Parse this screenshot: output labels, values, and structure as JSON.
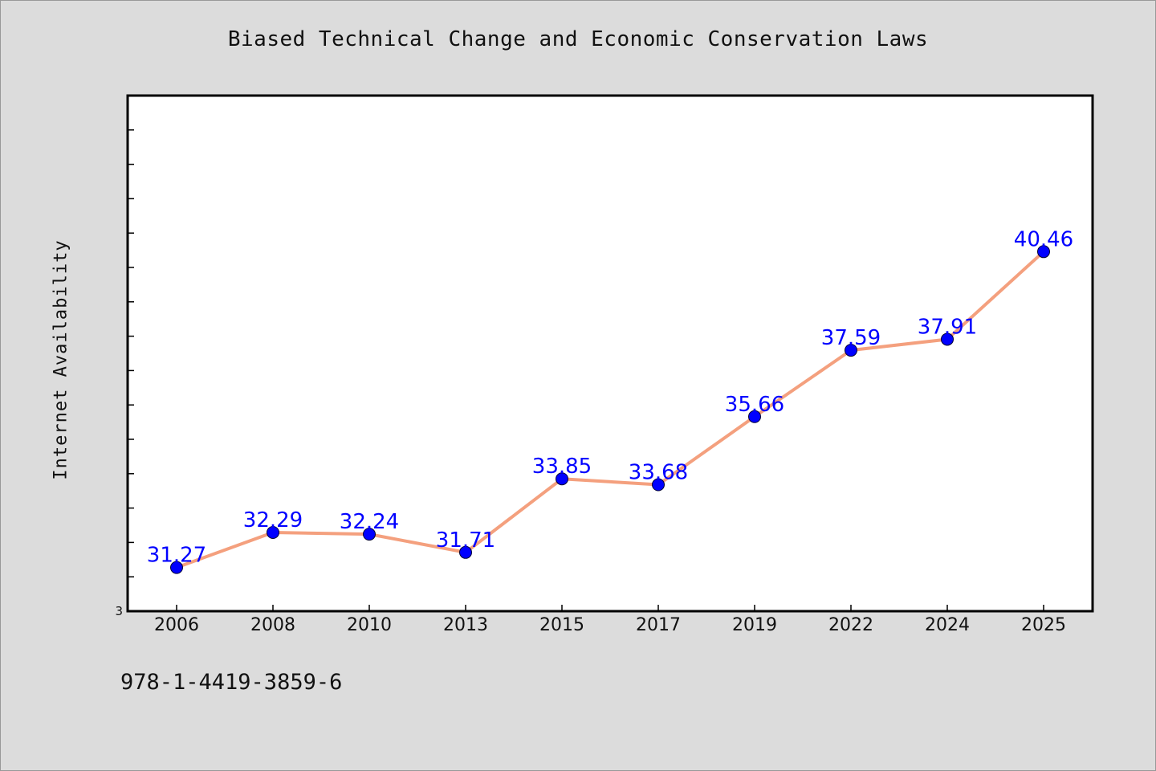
{
  "chart_data": {
    "type": "line",
    "title": "Biased Technical Change and Economic Conservation Laws",
    "xlabel": "",
    "ylabel": "Internet Availability",
    "categories": [
      "2006",
      "2008",
      "2010",
      "2013",
      "2015",
      "2017",
      "2019",
      "2022",
      "2024",
      "2025"
    ],
    "series": [
      {
        "values": [
          31.27,
          32.29,
          32.24,
          31.71,
          33.85,
          33.68,
          35.66,
          37.59,
          37.91,
          40.46
        ]
      }
    ],
    "data_labels": [
      "31.27",
      "32.29",
      "32.24",
      "31.71",
      "33.85",
      "33.68",
      "35.66",
      "37.59",
      "37.91",
      "40.46"
    ],
    "y_min_label": "3",
    "ylim": [
      30.0,
      45.0
    ],
    "y_minor_tick_step": 1,
    "grid": false,
    "legend": "none",
    "colors": {
      "line": "#f4a07e",
      "marker": "#0000ff",
      "data_label": "#0000ff",
      "plot_background": "#ffffff",
      "page_background": "#dcdcdc"
    }
  },
  "footer": {
    "code": "978-1-4419-3859-6"
  }
}
